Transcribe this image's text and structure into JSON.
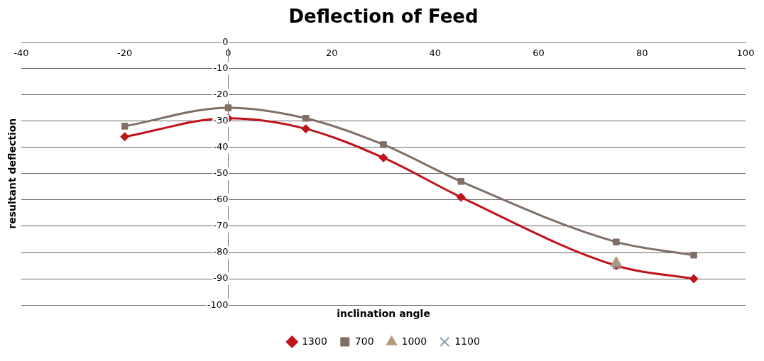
{
  "chart_data": {
    "type": "line",
    "title": "Deflection of Feed",
    "xlabel": "inclination angle",
    "ylabel": "resultant deflection",
    "xlim": [
      -40,
      100
    ],
    "xticks": [
      -40,
      -20,
      0,
      20,
      40,
      60,
      80,
      100
    ],
    "ylim": [
      -100,
      0
    ],
    "yticks": [
      0,
      -10,
      -20,
      -30,
      -40,
      -50,
      -60,
      -70,
      -80,
      -90,
      -100
    ],
    "grid": "y",
    "legend": "bottom",
    "series": [
      {
        "name": "1300",
        "color": "#c0141c",
        "marker": "diamond",
        "x": [
          -20,
          0,
          15,
          30,
          45,
          75,
          90
        ],
        "values": [
          -36,
          -29,
          -33,
          -44,
          -59,
          -85,
          -90
        ]
      },
      {
        "name": "700",
        "color": "#7f6f67",
        "marker": "square",
        "x": [
          -20,
          0,
          15,
          30,
          45,
          75,
          90
        ],
        "values": [
          -32,
          -25,
          -29,
          -39,
          -53,
          -76,
          -81
        ]
      },
      {
        "name": "1000",
        "color": "#b39b77",
        "marker": "triangle",
        "x": [
          75
        ],
        "values": [
          -84
        ]
      },
      {
        "name": "1100",
        "color": "#8c9bb5",
        "marker": "cross",
        "x": [
          75
        ],
        "values": [
          -85
        ]
      }
    ]
  }
}
